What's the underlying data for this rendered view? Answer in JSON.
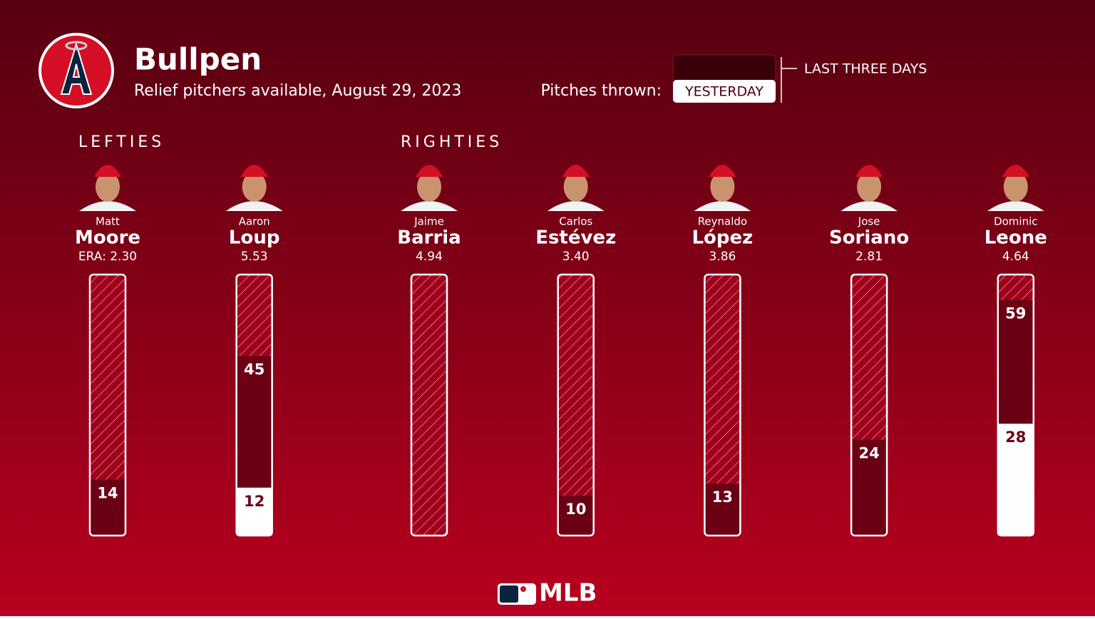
{
  "header": {
    "title": "Bullpen",
    "subtitle": "Relief pitchers available, August 29, 2023"
  },
  "legend": {
    "label": "Pitches thrown:",
    "three_days": "LAST THREE DAYS",
    "yesterday": "YESTERDAY"
  },
  "groups": [
    {
      "name": "LEFTIES",
      "pitchers": [
        {
          "first": "Matt",
          "last": "Moore",
          "era": "ERA: 2.30",
          "last_three_days": 14
        },
        {
          "first": "Aaron",
          "last": "Loup",
          "era": "5.53",
          "last_three_days": 45,
          "yesterday": 12
        }
      ]
    },
    {
      "name": "RIGHTIES",
      "pitchers": [
        {
          "first": "Jaime",
          "last": "Barria",
          "era": "4.94"
        },
        {
          "first": "Carlos",
          "last": "Estévez",
          "era": "3.40",
          "last_three_days": 10
        },
        {
          "first": "Reynaldo",
          "last": "López",
          "era": "3.86",
          "last_three_days": 13
        },
        {
          "first": "Jose",
          "last": "Soriano",
          "era": "2.81",
          "last_three_days": 24
        },
        {
          "first": "Dominic",
          "last": "Leone",
          "era": "4.64",
          "last_three_days": 59,
          "yesterday": 28
        }
      ]
    }
  ],
  "footer": {
    "brand": "MLB"
  }
}
